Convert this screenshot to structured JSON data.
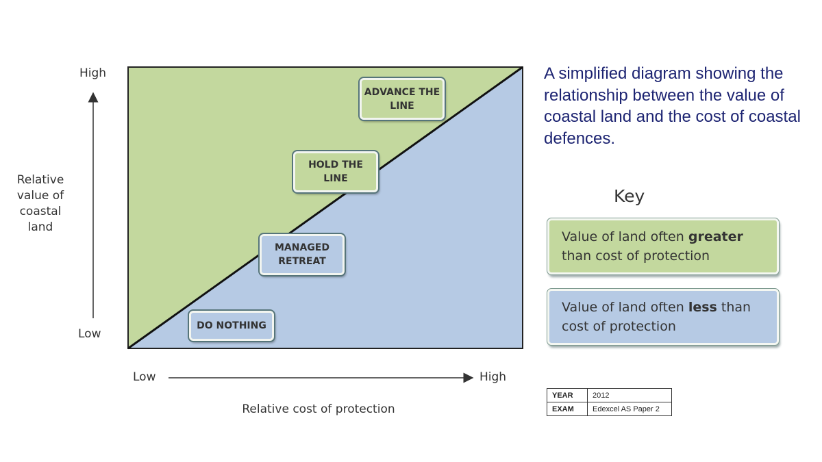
{
  "diagram": {
    "y_axis": {
      "label": "Relative value of coastal land",
      "high": "High",
      "low": "Low"
    },
    "x_axis": {
      "label": "Relative cost of protection",
      "low": "Low",
      "high": "High"
    },
    "regions": {
      "upper_color": "#c3d89e",
      "lower_color": "#b6cae4",
      "divider_color": "#111111"
    },
    "strategies": [
      {
        "label": "ADVANCE THE LINE",
        "color": "#c3d89e"
      },
      {
        "label": "HOLD THE LINE",
        "color": "#c3d89e"
      },
      {
        "label": "MANAGED RETREAT",
        "color": "#b6cae4"
      },
      {
        "label": "DO NOTHING",
        "color": "#b6cae4"
      }
    ]
  },
  "title": "A simplified diagram showing the relationship between the value of coastal land and the cost of coastal defences.",
  "key": {
    "heading": "Key",
    "items": [
      {
        "prefix": "Value of land often ",
        "emphasis": "greater",
        "suffix": " than cost of protection",
        "color": "#c3d89e"
      },
      {
        "prefix": "Value of land often ",
        "emphasis": "less",
        "suffix": " than cost of protection",
        "color": "#b6cae4"
      }
    ]
  },
  "meta": {
    "year_label": "YEAR",
    "year_value": "2012",
    "exam_label": "EXAM",
    "exam_value": "Edexcel AS Paper 2"
  }
}
